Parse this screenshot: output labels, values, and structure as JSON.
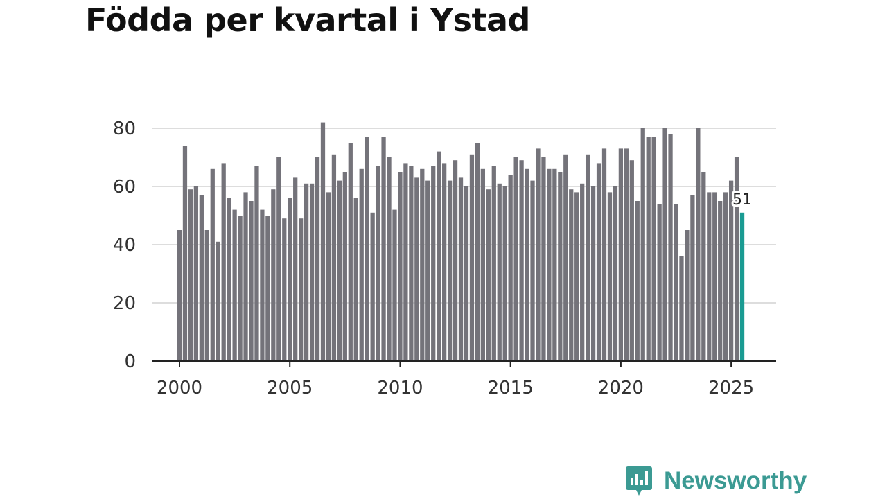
{
  "chart_data": {
    "type": "bar",
    "title": "Födda per kvartal i Ystad",
    "xlabel": "",
    "ylabel": "",
    "ylim": [
      0,
      80
    ],
    "y_ticks": [
      0,
      20,
      40,
      60,
      80
    ],
    "x_range": [
      2000,
      2025.75
    ],
    "x_ticks": [
      2000,
      2005,
      2010,
      2015,
      2020,
      2025
    ],
    "start_year": 2000,
    "periods_per_year": 4,
    "values": [
      45,
      74,
      59,
      60,
      57,
      45,
      66,
      41,
      68,
      56,
      52,
      50,
      58,
      55,
      67,
      52,
      50,
      59,
      70,
      49,
      56,
      63,
      49,
      61,
      61,
      70,
      82,
      58,
      71,
      62,
      65,
      75,
      56,
      66,
      77,
      51,
      67,
      77,
      70,
      52,
      65,
      68,
      67,
      63,
      66,
      62,
      67,
      72,
      68,
      62,
      69,
      63,
      60,
      71,
      75,
      66,
      59,
      67,
      61,
      60,
      64,
      70,
      69,
      66,
      62,
      73,
      70,
      66,
      66,
      65,
      71,
      59,
      58,
      61,
      71,
      60,
      68,
      73,
      58,
      60,
      73,
      73,
      69,
      55,
      80,
      77,
      77,
      54,
      80,
      78,
      54,
      36,
      45,
      57,
      80,
      65,
      58,
      58,
      55,
      58,
      62,
      70,
      51
    ],
    "highlight_index": 102,
    "highlight_label": "51",
    "colors": {
      "bar": "#74737a",
      "highlight": "#1a9b92",
      "grid": "#dddddd",
      "axis": "#222222"
    }
  },
  "brand": {
    "name": "Newsworthy",
    "icon": "newsworthy-logo-icon",
    "color": "#3b9a93"
  }
}
